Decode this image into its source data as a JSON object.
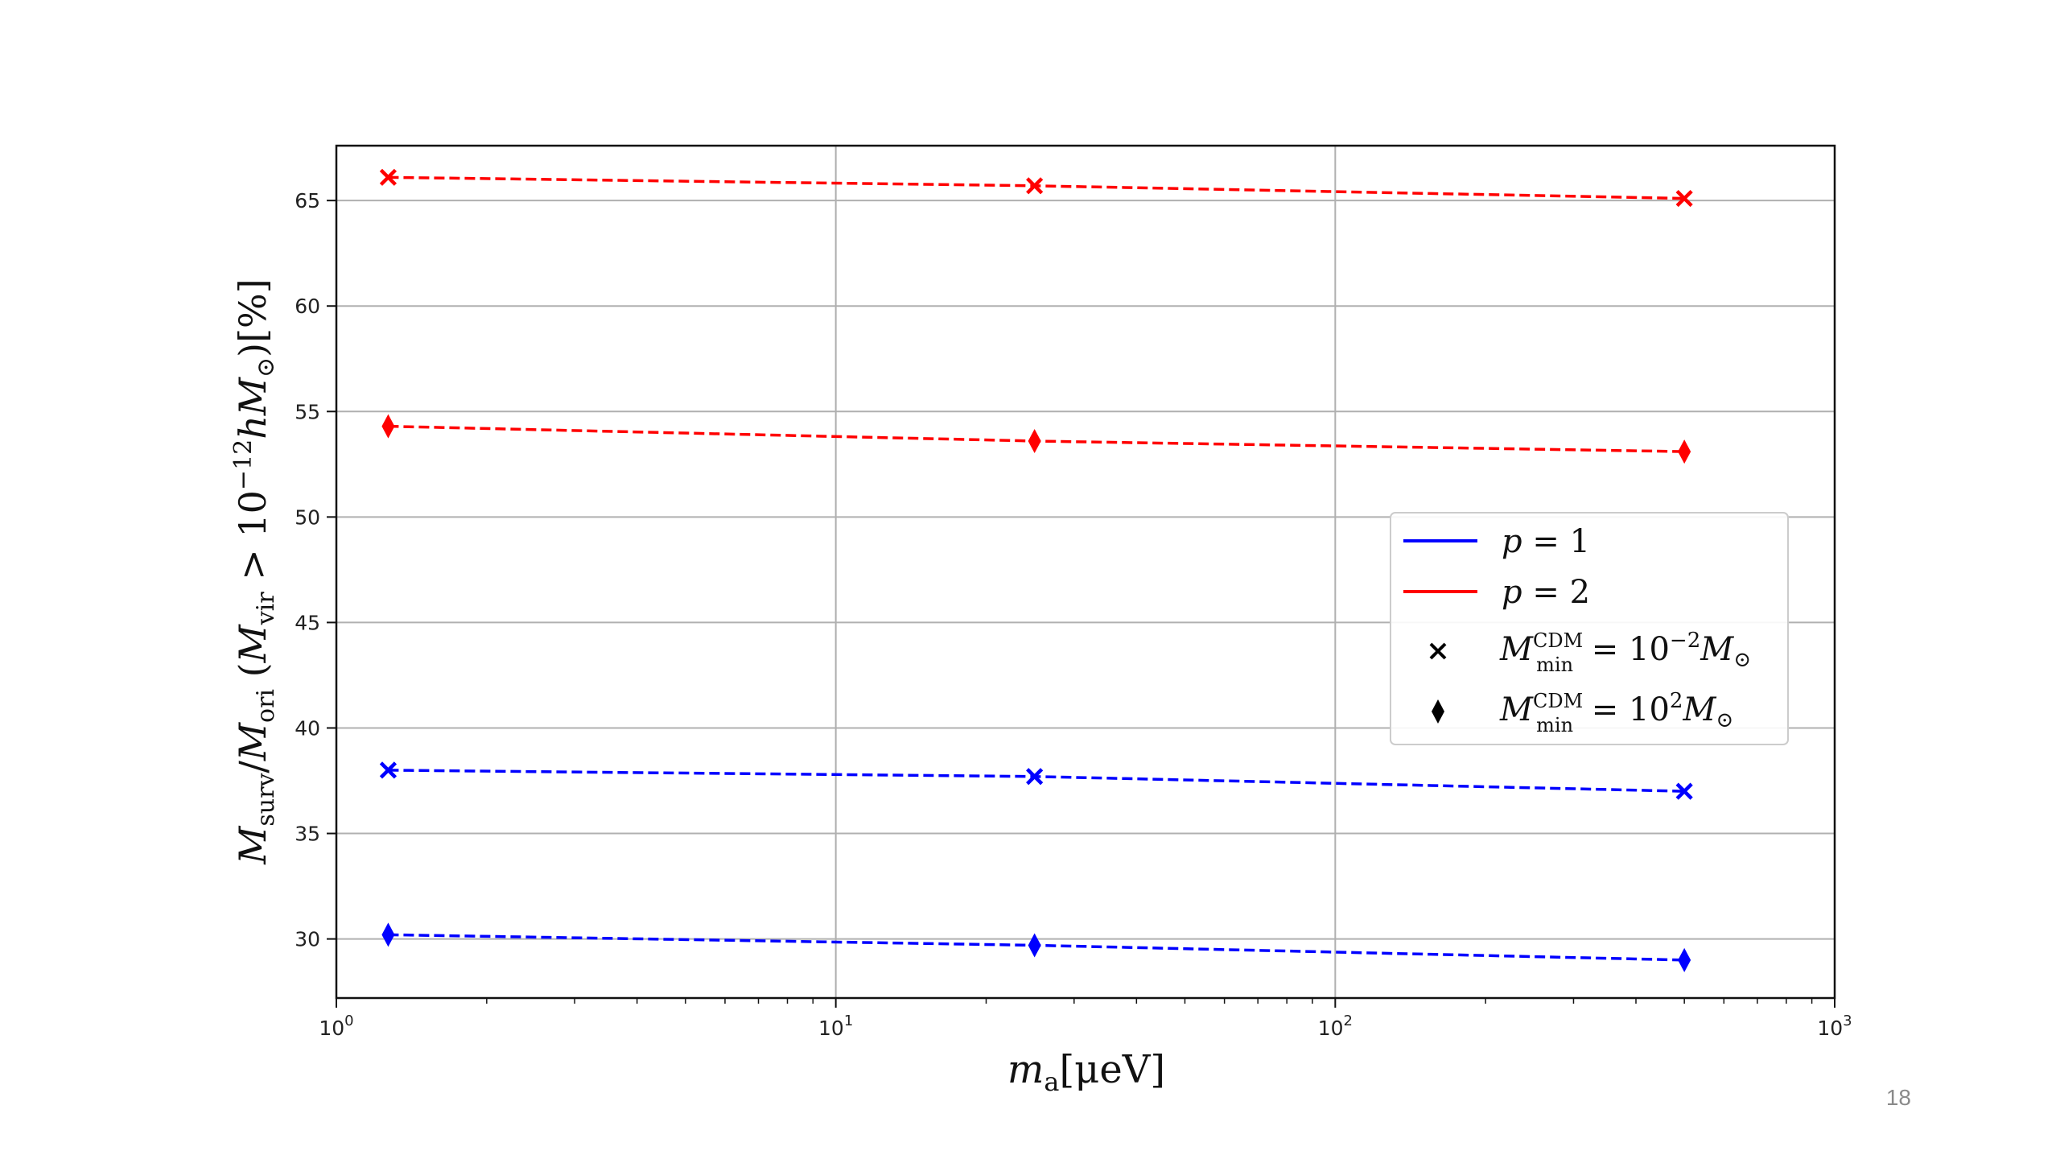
{
  "chart_data": {
    "type": "line",
    "xscale": "log",
    "xlim": [
      1,
      1000
    ],
    "ylim": [
      27.2,
      67.6
    ],
    "x": [
      1.27,
      25,
      500
    ],
    "x_tick_labels": [
      {
        "base": "10",
        "exp": "0"
      },
      {
        "base": "10",
        "exp": "1"
      },
      {
        "base": "10",
        "exp": "2"
      },
      {
        "base": "10",
        "exp": "3"
      }
    ],
    "y_ticks": [
      30,
      35,
      40,
      45,
      50,
      55,
      60,
      65
    ],
    "y_tick_labels": [
      "30",
      "35",
      "40",
      "45",
      "50",
      "55",
      "60",
      "65"
    ],
    "grid": true,
    "series": [
      {
        "name": "p=2, M_min^CDM=10^-2 M_sun",
        "color": "#ff0000",
        "marker": "x",
        "values": [
          66.1,
          65.7,
          65.1
        ]
      },
      {
        "name": "p=2, M_min^CDM=10^2 M_sun",
        "color": "#ff0000",
        "marker": "d",
        "values": [
          54.3,
          53.6,
          53.1
        ]
      },
      {
        "name": "p=1, M_min^CDM=10^-2 M_sun",
        "color": "#0000ff",
        "marker": "x",
        "values": [
          38.0,
          37.7,
          37.0
        ]
      },
      {
        "name": "p=1, M_min^CDM=10^2 M_sun",
        "color": "#0000ff",
        "marker": "d",
        "values": [
          30.2,
          29.7,
          29.0
        ]
      }
    ],
    "xlabel": {
      "main": "m",
      "sub": "a",
      "rest": "[μeV]"
    },
    "ylabel": {
      "m1": "M",
      "s1": "surv",
      "slash": "/",
      "m2": "M",
      "s2": "ori",
      "open": " (",
      "m3": "M",
      "s3": "vir",
      "gt": " > ",
      "ten": "10",
      "exp": "−12",
      "h": "h",
      "m4": "M",
      "sun": "⊙",
      "close": ")[%]"
    },
    "legend": {
      "placement": "center-right",
      "entries": [
        {
          "kind": "line",
          "color": "#0000ff",
          "var": "p",
          "eq": " = ",
          "val": "1"
        },
        {
          "kind": "line",
          "color": "#ff0000",
          "var": "p",
          "eq": " = ",
          "val": "2"
        },
        {
          "kind": "marker",
          "marker": "x",
          "color": "#000000",
          "m": "M",
          "sup": "CDM",
          "sub": "min",
          "eq": " = ",
          "ten": "10",
          "exp": "−2",
          "m2": "M",
          "sun": "⊙"
        },
        {
          "kind": "marker",
          "marker": "d",
          "color": "#000000",
          "m": "M",
          "sup": "CDM",
          "sub": "min",
          "eq": " = ",
          "ten": "10",
          "exp": "2",
          "m2": "M",
          "sun": "⊙"
        }
      ]
    }
  },
  "page_number": "18"
}
